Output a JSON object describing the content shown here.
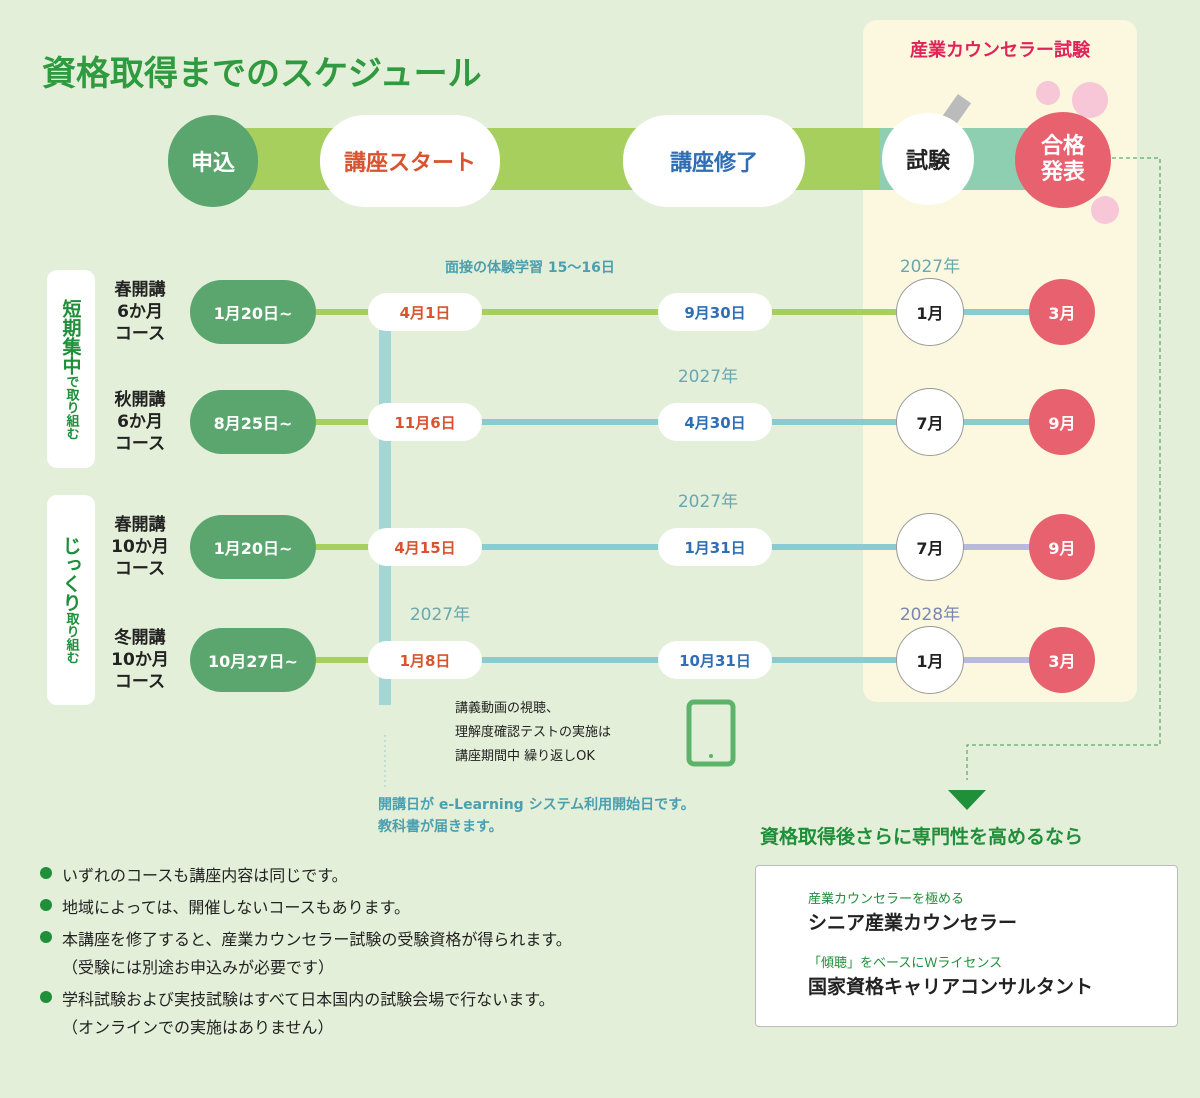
{
  "title": "資格取得までのスケジュール",
  "exam_panel_label": "産業カウンセラー試験",
  "stages": [
    "申込",
    "講座スタート",
    "講座修了",
    "試験"
  ],
  "result_stage": [
    "合格",
    "発表"
  ],
  "groups": [
    {
      "main": "短期集中",
      "sub": "で取り組む"
    },
    {
      "main": "じっくり",
      "sub": "取り組む"
    }
  ],
  "rows": [
    {
      "course": [
        "春開講",
        "6か月",
        "コース"
      ],
      "apply": "1月20日~",
      "start": "4月1日",
      "end": "9月30日",
      "exam": "1月",
      "result": "3月",
      "exam_year": "2027年"
    },
    {
      "course": [
        "秋開講",
        "6か月",
        "コース"
      ],
      "apply": "8月25日~",
      "start": "11月6日",
      "end": "4月30日",
      "exam": "7月",
      "result": "9月",
      "end_year": "2027年"
    },
    {
      "course": [
        "春開講",
        "10か月",
        "コース"
      ],
      "apply": "1月20日~",
      "start": "4月15日",
      "end": "1月31日",
      "exam": "7月",
      "result": "9月",
      "end_year": "2027年"
    },
    {
      "course": [
        "冬開講",
        "10か月",
        "コース"
      ],
      "apply": "10月27日~",
      "start": "1月8日",
      "end": "10月31日",
      "exam": "1月",
      "result": "3月",
      "start_year": "2027年",
      "exam_year": "2028年"
    }
  ],
  "interview_note": "面接の体験学習 15～16日",
  "elearning_note": [
    "講義動画の視聴、",
    "理解度確認テストの実施は",
    "講座期間中 繰り返しOK"
  ],
  "start_note": [
    "開講日が e-Learning システム利用開始日です。",
    "教科書が届きます。"
  ],
  "bullets": [
    [
      "いずれのコースも講座内容は同じです。"
    ],
    [
      "地域によっては、開催しないコースもあります。"
    ],
    [
      "本講座を修了すると、産業カウンセラー試験の受験資格が得られます。",
      "（受験には別途お申込みが必要です）"
    ],
    [
      "学科試験および実技試験はすべて日本国内の試験会場で行ないます。",
      "（オンラインでの実施はありません）"
    ]
  ],
  "next_heading": "資格取得後さらに専門性を高めるなら",
  "next_items": [
    {
      "sub": "産業カウンセラーを極める",
      "name": "シニア産業カウンセラー"
    },
    {
      "sub": "「傾聴」をベースにＷライセンス",
      "name": "国家資格キャリアコンサルタント"
    }
  ]
}
